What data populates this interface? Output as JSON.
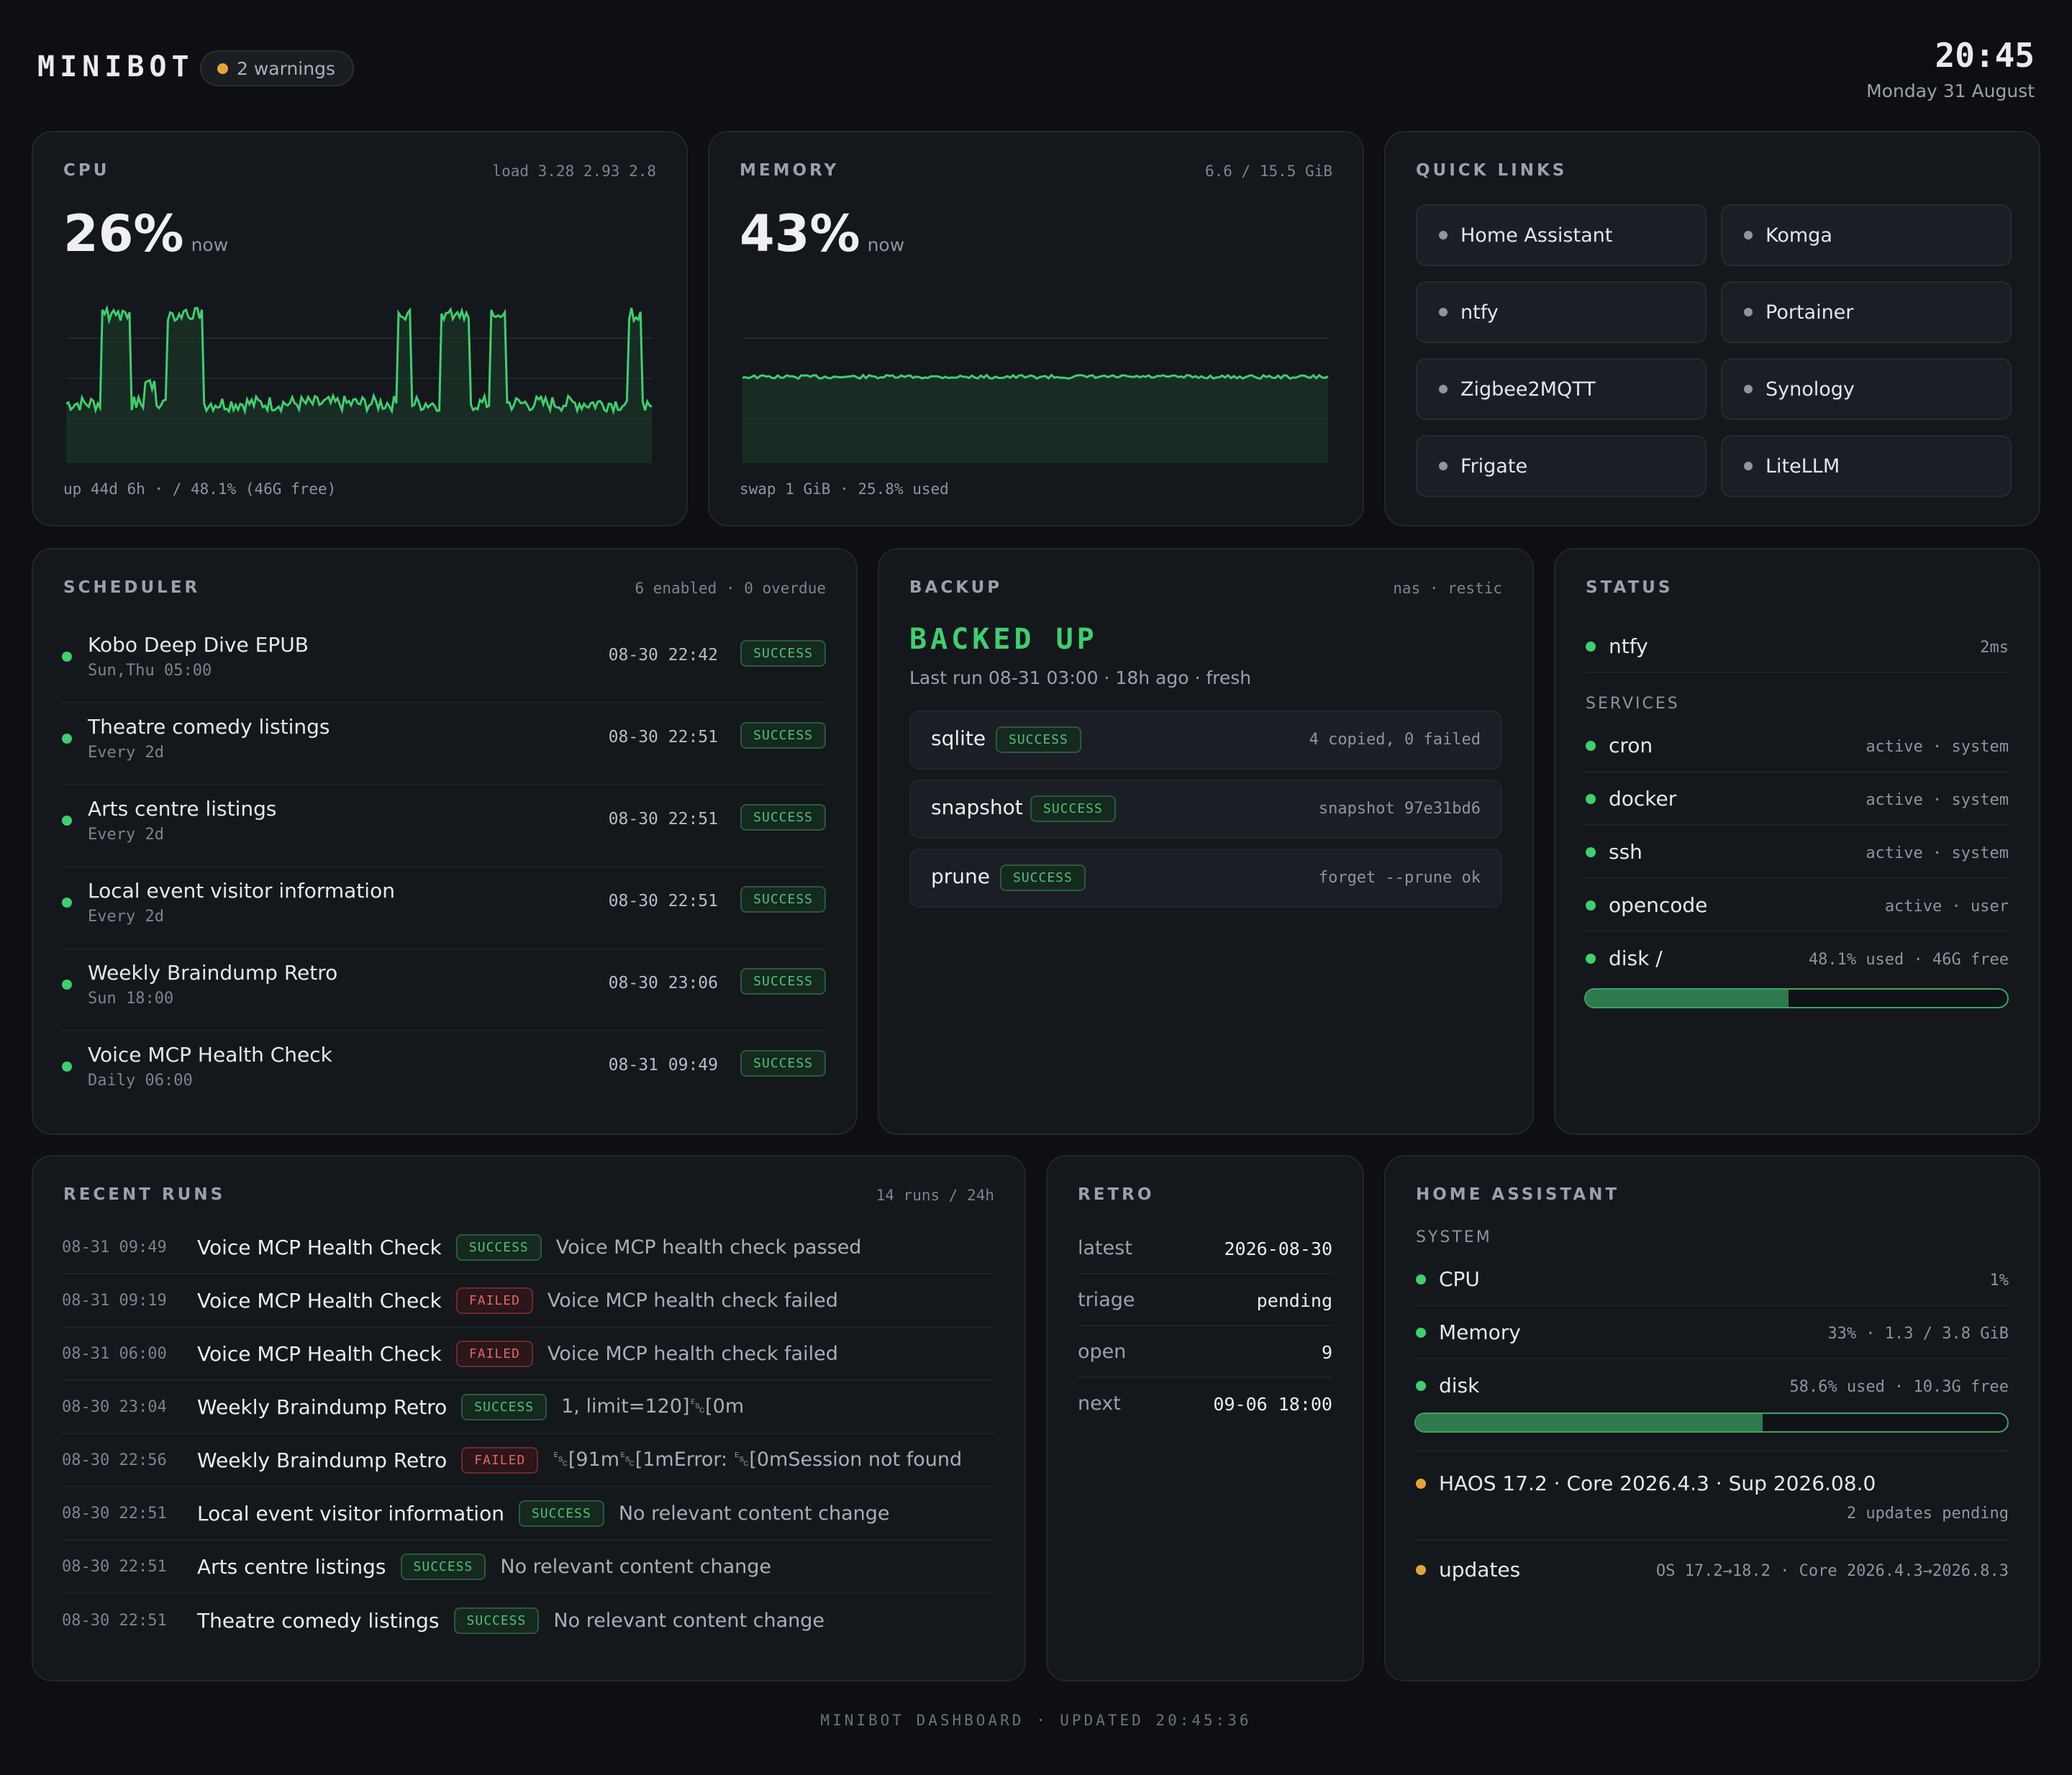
{
  "header": {
    "brand": "MINIBOT",
    "warnings": "2 warnings",
    "clock": "20:45",
    "date": "Monday 31 August"
  },
  "cpu": {
    "title": "CPU",
    "load": "load 3.28 2.93 2.8",
    "value": "26%",
    "unit": "now",
    "footer": "up 44d 6h · / 48.1% (46G free)",
    "series_color": "#3ecf6e"
  },
  "memory": {
    "title": "MEMORY",
    "usage": "6.6 / 15.5 GiB",
    "value": "43%",
    "unit": "now",
    "footer": "swap 1 GiB · 25.8% used"
  },
  "quick_links": {
    "title": "QUICK LINKS",
    "items": [
      "Home Assistant",
      "Komga",
      "ntfy",
      "Portainer",
      "Zigbee2MQTT",
      "Synology",
      "Frigate",
      "LiteLLM"
    ]
  },
  "scheduler": {
    "title": "SCHEDULER",
    "meta": "6 enabled · 0 overdue",
    "rows": [
      {
        "name": "Kobo Deep Dive EPUB",
        "sub": "Sun,Thu 05:00",
        "time": "08-30 22:42",
        "status": "SUCCESS"
      },
      {
        "name": "Theatre comedy listings",
        "sub": "Every 2d",
        "time": "08-30 22:51",
        "status": "SUCCESS"
      },
      {
        "name": "Arts centre listings",
        "sub": "Every 2d",
        "time": "08-30 22:51",
        "status": "SUCCESS"
      },
      {
        "name": "Local event visitor information",
        "sub": "Every 2d",
        "time": "08-30 22:51",
        "status": "SUCCESS"
      },
      {
        "name": "Weekly Braindump Retro",
        "sub": "Sun 18:00",
        "time": "08-30 23:06",
        "status": "SUCCESS"
      },
      {
        "name": "Voice MCP Health Check",
        "sub": "Daily 06:00",
        "time": "08-31 09:49",
        "status": "SUCCESS"
      }
    ]
  },
  "backup": {
    "title": "BACKUP",
    "meta": "nas · restic",
    "state": "BACKED UP",
    "last_run": "Last run 08-31 03:00 · 18h ago · fresh",
    "rows": [
      {
        "name": "sqlite",
        "status": "SUCCESS",
        "detail": "4 copied, 0 failed"
      },
      {
        "name": "snapshot",
        "status": "SUCCESS",
        "detail": "snapshot 97e31bd6"
      },
      {
        "name": "prune",
        "status": "SUCCESS",
        "detail": "forget --prune ok"
      }
    ]
  },
  "status": {
    "title": "STATUS",
    "ntfy": {
      "name": "ntfy",
      "value": "2ms"
    },
    "services_label": "SERVICES",
    "services": [
      {
        "name": "cron",
        "value": "active · system"
      },
      {
        "name": "docker",
        "value": "active · system"
      },
      {
        "name": "ssh",
        "value": "active · system"
      },
      {
        "name": "opencode",
        "value": "active · user"
      },
      {
        "name": "disk /",
        "value": "48.1% used · 46G free"
      }
    ],
    "disk_fraction": 0.481
  },
  "recent_runs": {
    "title": "RECENT RUNS",
    "meta": "14 runs / 24h",
    "rows": [
      {
        "time": "08-31 09:49",
        "name": "Voice MCP Health Check",
        "status": "SUCCESS",
        "msg": "Voice MCP health check passed"
      },
      {
        "time": "08-31 09:19",
        "name": "Voice MCP Health Check",
        "status": "FAILED",
        "msg": "Voice MCP health check failed"
      },
      {
        "time": "08-31 06:00",
        "name": "Voice MCP Health Check",
        "status": "FAILED",
        "msg": "Voice MCP health check failed"
      },
      {
        "time": "08-30 23:04",
        "name": "Weekly Braindump Retro",
        "status": "SUCCESS",
        "msg": "1, limit=120]␛[0m"
      },
      {
        "time": "08-30 22:56",
        "name": "Weekly Braindump Retro",
        "status": "FAILED",
        "msg": "␛[91m␛[1mError: ␛[0mSession not found"
      },
      {
        "time": "08-30 22:51",
        "name": "Local event visitor information",
        "status": "SUCCESS",
        "msg": "No relevant content change"
      },
      {
        "time": "08-30 22:51",
        "name": "Arts centre listings",
        "status": "SUCCESS",
        "msg": "No relevant content change"
      },
      {
        "time": "08-30 22:51",
        "name": "Theatre comedy listings",
        "status": "SUCCESS",
        "msg": "No relevant content change"
      }
    ]
  },
  "retro": {
    "title": "RETRO",
    "rows": [
      {
        "key": "latest",
        "value": "2026-08-30"
      },
      {
        "key": "triage",
        "value": "pending"
      },
      {
        "key": "open",
        "value": "9"
      },
      {
        "key": "next",
        "value": "09-06 18:00"
      }
    ]
  },
  "home_assistant": {
    "title": "HOME ASSISTANT",
    "system_label": "SYSTEM",
    "rows": [
      {
        "name": "CPU",
        "value": "1%"
      },
      {
        "name": "Memory",
        "value": "33% · 1.3 / 3.8 GiB"
      },
      {
        "name": "disk",
        "value": "58.6% used · 10.3G free"
      }
    ],
    "disk_fraction": 0.586,
    "haos": {
      "name": "HAOS 17.2 · Core 2026.4.3 · Sup 2026.08.0",
      "value": "2 updates pending"
    },
    "updates": {
      "name": "updates",
      "value": "OS 17.2→18.2 · Core 2026.4.3→2026.8.3"
    }
  },
  "footer": "MINIBOT DASHBOARD · UPDATED 20:45:36"
}
